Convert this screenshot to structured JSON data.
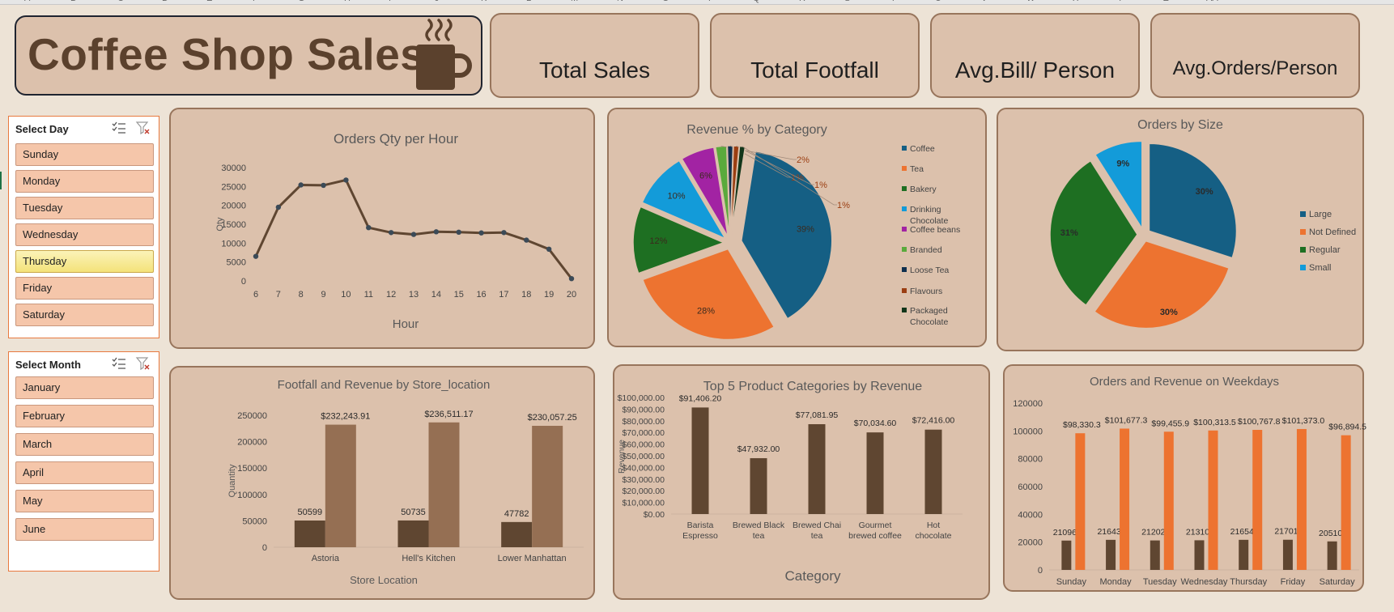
{
  "header": {
    "title": "Coffee Shop Sales",
    "kpis": [
      "Total Sales",
      "Total Footfall",
      "Avg.Bill/ Person",
      "Avg.Orders/Person"
    ]
  },
  "slicers": {
    "day": {
      "title": "Select Day",
      "items": [
        "Sunday",
        "Monday",
        "Tuesday",
        "Wednesday",
        "Thursday",
        "Friday",
        "Saturday"
      ],
      "selected": "Thursday"
    },
    "month": {
      "title": "Select Month",
      "items": [
        "January",
        "February",
        "March",
        "April",
        "May",
        "June"
      ]
    }
  },
  "colors": {
    "background": "#ede3d6",
    "panel": "#dcc1ac",
    "panel_border": "#98755c",
    "brown_dark": "#5f4631",
    "brown_light": "#956f53",
    "orange": "#ed7330",
    "blue": "#155f84",
    "green": "#1e6f22",
    "light_blue": "#139bd9",
    "magenta": "#a223a3"
  },
  "chart_data": [
    {
      "type": "line",
      "title": "Orders Qty per Hour",
      "xlabel": "Hour",
      "ylabel": "Qty",
      "x": [
        6,
        7,
        8,
        9,
        10,
        11,
        12,
        13,
        14,
        15,
        16,
        17,
        18,
        19,
        20
      ],
      "values": [
        6500,
        19500,
        25400,
        25300,
        26700,
        14100,
        12800,
        12300,
        13000,
        12900,
        12700,
        12800,
        10800,
        8400,
        600
      ],
      "yticks": [
        "0",
        "5000",
        "10000",
        "15000",
        "20000",
        "25000",
        "30000"
      ],
      "ylim": [
        0,
        30000
      ],
      "color": "#5f4631"
    },
    {
      "type": "pie",
      "title": "Revenue % by Category",
      "categories": [
        "Coffee",
        "Tea",
        "Bakery",
        "Drinking Chocolate",
        "Coffee beans",
        "Branded",
        "Loose Tea",
        "Flavours",
        "Packaged Chocolate"
      ],
      "values": [
        39,
        28,
        12,
        10,
        6,
        2,
        1,
        1,
        1
      ],
      "labels": [
        "39%",
        "28%",
        "12%",
        "10%",
        "6%",
        "2%",
        "1%",
        "1%",
        "1%"
      ],
      "colors": [
        "#155f84",
        "#ed7330",
        "#1e6f22",
        "#139bd9",
        "#a223a3",
        "#5aaa3c",
        "#0f2f4e",
        "#9b3e12",
        "#12361a"
      ],
      "legend": "right"
    },
    {
      "type": "pie",
      "title": "Orders by Size",
      "categories": [
        "Large",
        "Not Defined",
        "Regular",
        "Small"
      ],
      "values": [
        30,
        30,
        31,
        9
      ],
      "labels": [
        "30%",
        "30%",
        "31%",
        "9%"
      ],
      "colors": [
        "#155f84",
        "#ed7330",
        "#1e6f22",
        "#139bd9"
      ],
      "legend": "right"
    },
    {
      "type": "bar",
      "title": "Footfall and Revenue by Store_location",
      "xlabel": "Store Location",
      "ylabel": "Quantity",
      "categories": [
        "Astoria",
        "Hell's Kitchen",
        "Lower Manhattan"
      ],
      "series": [
        {
          "values": [
            50599,
            50735,
            47782
          ],
          "labels": [
            "50599",
            "50735",
            "47782"
          ],
          "color": "#5f4631"
        },
        {
          "values": [
            232243.91,
            236511.17,
            230057.25
          ],
          "labels": [
            "$232,243.91",
            "$236,511.17",
            "$230,057.25"
          ],
          "color": "#956f53"
        }
      ],
      "yticks": [
        "0",
        "50000",
        "100000",
        "150000",
        "200000",
        "250000"
      ],
      "ylim": [
        0,
        250000
      ]
    },
    {
      "type": "bar",
      "title": "Top 5 Product Categories by Revenue",
      "xlabel": "Category",
      "ylabel": "Revenue",
      "categories": [
        "Barista Espresso",
        "Brewed Black tea",
        "Brewed Chai tea",
        "Gourmet brewed coffee",
        "Hot chocolate"
      ],
      "values": [
        91406.2,
        47932.0,
        77081.95,
        70034.6,
        72416.0
      ],
      "labels": [
        "$91,406.20",
        "$47,932.00",
        "$77,081.95",
        "$70,034.60",
        "$72,416.00"
      ],
      "yticks": [
        "$0.00",
        "$10,000.00",
        "$20,000.00",
        "$30,000.00",
        "$40,000.00",
        "$50,000.00",
        "$60,000.00",
        "$70,000.00",
        "$80,000.00",
        "$90,000.00",
        "$100,000.00"
      ],
      "ylim": [
        0,
        100000
      ],
      "color": "#5f4631"
    },
    {
      "type": "bar",
      "title": "Orders and Revenue on Weekdays",
      "categories": [
        "Sunday",
        "Monday",
        "Tuesday",
        "Wednesday",
        "Thursday",
        "Friday",
        "Saturday"
      ],
      "series": [
        {
          "values": [
            21096,
            21643,
            21202,
            21310,
            21654,
            21701,
            20510
          ],
          "labels": [
            "21096",
            "21643",
            "21202",
            "21310",
            "21654",
            "21701",
            "20510"
          ],
          "color": "#5f4631"
        },
        {
          "values": [
            98330.3,
            101677.3,
            99455.9,
            100313.5,
            100767.8,
            101373.0,
            96894.5
          ],
          "labels": [
            "$98,330.3",
            "$101,677.3",
            "$99,455.9",
            "$100,313.5",
            "$100,767.8",
            "$101,373.0",
            "$96,894.5"
          ],
          "color": "#ed7330"
        }
      ],
      "yticks": [
        "0",
        "20000",
        "40000",
        "60000",
        "80000",
        "100000",
        "120000"
      ],
      "ylim": [
        0,
        120000
      ]
    }
  ]
}
